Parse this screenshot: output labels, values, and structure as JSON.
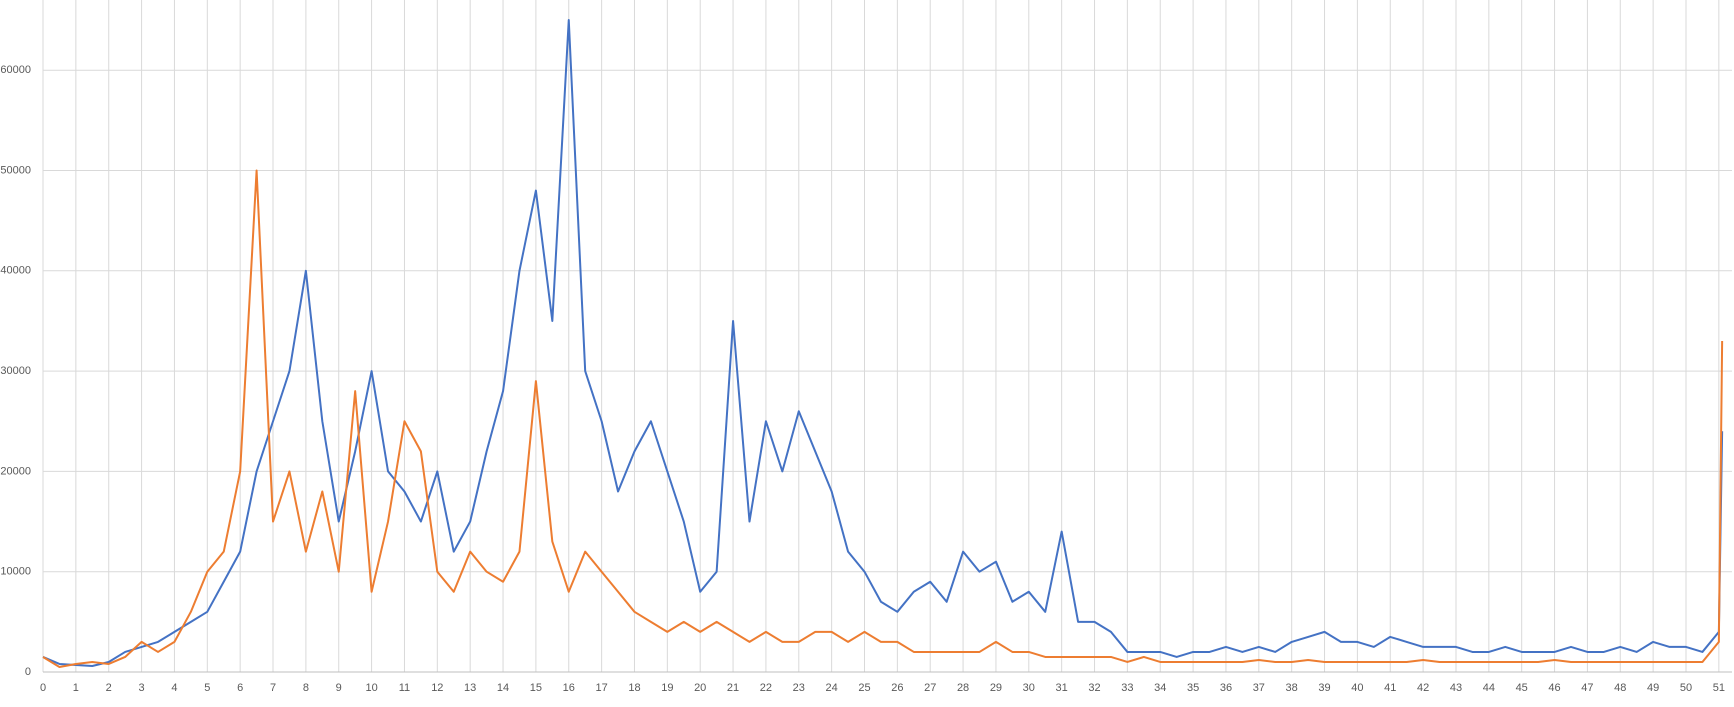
{
  "chart_data": {
    "type": "line",
    "x": [
      0,
      0.5,
      1,
      1.5,
      2,
      2.5,
      3,
      3.5,
      4,
      4.5,
      5,
      5.5,
      6,
      6.5,
      7,
      7.5,
      8,
      8.5,
      9,
      9.5,
      10,
      10.5,
      11,
      11.5,
      12,
      12.5,
      13,
      13.5,
      14,
      14.5,
      15,
      15.5,
      16,
      16.5,
      17,
      17.5,
      18,
      18.5,
      19,
      19.5,
      20,
      20.5,
      21,
      21.5,
      22,
      22.5,
      23,
      23.5,
      24,
      24.5,
      25,
      25.5,
      26,
      26.5,
      27,
      27.5,
      28,
      28.5,
      29,
      29.5,
      30,
      30.5,
      31,
      31.5,
      32,
      32.5,
      33,
      33.5,
      34,
      34.5,
      35,
      35.5,
      36,
      36.5,
      37,
      37.5,
      38,
      38.5,
      39,
      39.5,
      40,
      40.5,
      41,
      41.5,
      42,
      42.5,
      43,
      43.5,
      44,
      44.5,
      45,
      45.5,
      46,
      46.5,
      47,
      47.5,
      48,
      48.5,
      49,
      49.5,
      50,
      50.5,
      51,
      51.1
    ],
    "series": [
      {
        "color": "#4472c4",
        "values": [
          1500,
          800,
          700,
          600,
          1000,
          2000,
          2500,
          3000,
          4000,
          5000,
          6000,
          9000,
          12000,
          20000,
          25000,
          30000,
          40000,
          25000,
          15000,
          22000,
          30000,
          20000,
          18000,
          15000,
          20000,
          12000,
          15000,
          22000,
          28000,
          40000,
          48000,
          35000,
          65000,
          30000,
          25000,
          18000,
          22000,
          25000,
          20000,
          15000,
          8000,
          10000,
          35000,
          15000,
          25000,
          20000,
          26000,
          22000,
          18000,
          12000,
          10000,
          7000,
          6000,
          8000,
          9000,
          7000,
          12000,
          10000,
          11000,
          7000,
          8000,
          6000,
          14000,
          5000,
          5000,
          4000,
          2000,
          2000,
          2000,
          1500,
          2000,
          2000,
          2500,
          2000,
          2500,
          2000,
          3000,
          3500,
          4000,
          3000,
          3000,
          2500,
          3500,
          3000,
          2500,
          2500,
          2500,
          2000,
          2000,
          2500,
          2000,
          2000,
          2000,
          2500,
          2000,
          2000,
          2500,
          2000,
          3000,
          2500,
          2500,
          2000,
          4000,
          24000
        ]
      },
      {
        "color": "#ed7d31",
        "values": [
          1500,
          500,
          800,
          1000,
          800,
          1500,
          3000,
          2000,
          3000,
          6000,
          10000,
          12000,
          20000,
          50000,
          15000,
          20000,
          12000,
          18000,
          10000,
          28000,
          8000,
          15000,
          25000,
          22000,
          10000,
          8000,
          12000,
          10000,
          9000,
          12000,
          29000,
          13000,
          8000,
          12000,
          10000,
          8000,
          6000,
          5000,
          4000,
          5000,
          4000,
          5000,
          4000,
          3000,
          4000,
          3000,
          3000,
          4000,
          4000,
          3000,
          4000,
          3000,
          3000,
          2000,
          2000,
          2000,
          2000,
          2000,
          3000,
          2000,
          2000,
          1500,
          1500,
          1500,
          1500,
          1500,
          1000,
          1500,
          1000,
          1000,
          1000,
          1000,
          1000,
          1000,
          1200,
          1000,
          1000,
          1200,
          1000,
          1000,
          1000,
          1000,
          1000,
          1000,
          1200,
          1000,
          1000,
          1000,
          1000,
          1000,
          1000,
          1000,
          1200,
          1000,
          1000,
          1000,
          1000,
          1000,
          1000,
          1000,
          1000,
          1000,
          3000,
          33000
        ]
      }
    ],
    "xlim": [
      0,
      51.4
    ],
    "xticks": [
      0,
      1,
      2,
      3,
      4,
      5,
      6,
      7,
      8,
      9,
      10,
      11,
      12,
      13,
      14,
      15,
      16,
      17,
      18,
      19,
      20,
      21,
      22,
      23,
      24,
      25,
      26,
      27,
      28,
      29,
      30,
      31,
      32,
      33,
      34,
      35,
      36,
      37,
      38,
      39,
      40,
      41,
      42,
      43,
      44,
      45,
      46,
      47,
      48,
      49,
      50,
      51
    ],
    "ylim": [
      0,
      67000
    ],
    "yticks": [
      0,
      10000,
      20000,
      30000,
      40000,
      50000,
      60000
    ],
    "grid": true
  }
}
